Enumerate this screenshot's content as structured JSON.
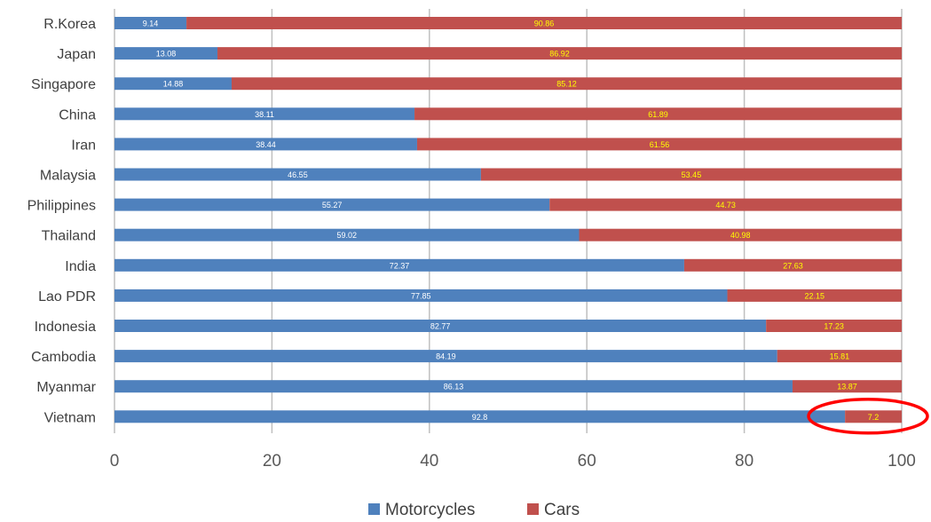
{
  "chart_data": {
    "type": "bar",
    "orientation": "horizontal",
    "stacked": true,
    "categories": [
      "R.Korea",
      "Japan",
      "Singapore",
      "China",
      "Iran",
      "Malaysia",
      "Philippines",
      "Thailand",
      "India",
      "Lao PDR",
      "Indonesia",
      "Cambodia",
      "Myanmar",
      "Vietnam"
    ],
    "series": [
      {
        "name": "Motorcycles",
        "color": "#4f81bd",
        "label_color": "#ffffff",
        "values": [
          9.14,
          13.08,
          14.88,
          38.11,
          38.44,
          46.55,
          55.27,
          59.02,
          72.37,
          77.85,
          82.77,
          84.19,
          86.13,
          92.8
        ],
        "labels": [
          "9.14",
          "13.08",
          "14.88",
          "38.11",
          "38.44",
          "46.55",
          "55.27",
          "59.02",
          "72.37",
          "77.85",
          "82.77",
          "84.19",
          "86.13",
          "92.8"
        ]
      },
      {
        "name": "Cars",
        "color": "#c0504d",
        "label_color": "#ffff00",
        "values": [
          90.86,
          86.92,
          85.12,
          61.89,
          61.56,
          53.45,
          44.73,
          40.98,
          27.63,
          22.15,
          17.23,
          15.81,
          13.87,
          7.2
        ],
        "labels": [
          "90.86",
          "86.92",
          "85.12",
          "61.89",
          "61.56",
          "53.45",
          "44.73",
          "40.98",
          "27.63",
          "22.15",
          "17.23",
          "15.81",
          "13.87",
          "7.2"
        ]
      }
    ],
    "xlim": [
      0,
      100
    ],
    "x_ticks": [
      "0",
      "20",
      "40",
      "60",
      "80",
      "100"
    ],
    "grid": true,
    "legend_position": "bottom",
    "highlight": {
      "category": "Vietnam",
      "series": "Cars",
      "shape": "ellipse",
      "color": "#ff0000"
    }
  }
}
